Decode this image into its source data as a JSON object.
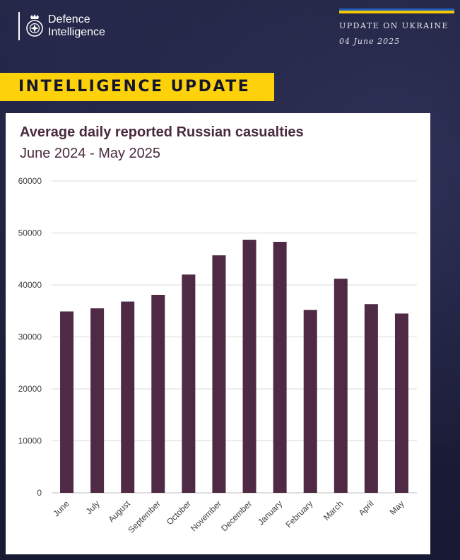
{
  "header": {
    "org_line1": "Defence",
    "org_line2": "Intelligence",
    "update_label": "UPDATE ON UKRAINE",
    "update_date": "04 June 2025",
    "banner": "INTELLIGENCE UPDATE"
  },
  "colors": {
    "background": "#1b1d3a",
    "banner": "#fdd20b",
    "bar": "#4f2a45",
    "title": "#4a2a3e",
    "flag_blue": "#1f5fbf",
    "flag_yellow": "#f5c800"
  },
  "chart_data": {
    "type": "bar",
    "title": "Average daily reported Russian casualties",
    "subtitle": "June 2024 - May 2025",
    "xlabel": "",
    "ylabel": "",
    "categories": [
      "June",
      "July",
      "August",
      "September",
      "October",
      "November",
      "December",
      "January",
      "February",
      "March",
      "April",
      "May"
    ],
    "values": [
      34900,
      35500,
      36800,
      38100,
      42000,
      45700,
      48700,
      48300,
      35200,
      41200,
      36300,
      34500
    ],
    "ylim": [
      0,
      60000
    ],
    "yticks": [
      "0",
      "10000",
      "20000",
      "30000",
      "40000",
      "50000",
      "60000"
    ],
    "grid": true,
    "legend": "none"
  }
}
